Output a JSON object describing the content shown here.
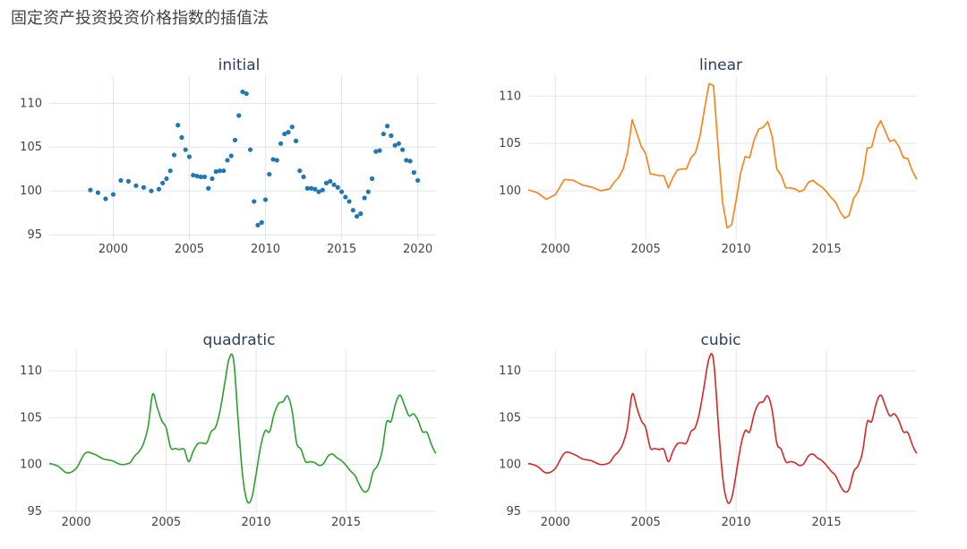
{
  "page": {
    "title": "固定资产投资投资价格指数的插值法"
  },
  "chart_data": [
    {
      "type": "scatter",
      "title": "initial",
      "color": "#1f77b4",
      "xlim": [
        1995.8,
        2021.2
      ],
      "ylim": [
        94.5,
        113.2
      ],
      "xticks": [
        2000,
        2005,
        2010,
        2015,
        2020
      ],
      "yticks": [
        95,
        100,
        105,
        110
      ],
      "x": [
        1998.5,
        1999.0,
        1999.5,
        2000.0,
        2000.5,
        2001.0,
        2001.5,
        2002.0,
        2002.5,
        2003.0,
        2003.25,
        2003.5,
        2003.75,
        2004.0,
        2004.25,
        2004.5,
        2004.75,
        2005.0,
        2005.25,
        2005.5,
        2005.75,
        2006.0,
        2006.25,
        2006.5,
        2006.75,
        2007.0,
        2007.25,
        2007.5,
        2007.75,
        2008.0,
        2008.25,
        2008.5,
        2008.75,
        2009.0,
        2009.25,
        2009.5,
        2009.75,
        2010.0,
        2010.25,
        2010.5,
        2010.75,
        2011.0,
        2011.25,
        2011.5,
        2011.75,
        2012.0,
        2012.25,
        2012.5,
        2012.75,
        2013.0,
        2013.25,
        2013.5,
        2013.75,
        2014.0,
        2014.25,
        2014.5,
        2014.75,
        2015.0,
        2015.25,
        2015.5,
        2015.75,
        2016.0,
        2016.25,
        2016.5,
        2016.75,
        2017.0,
        2017.25,
        2017.5,
        2017.75,
        2018.0,
        2018.25,
        2018.5,
        2018.75,
        2019.0,
        2019.25,
        2019.5,
        2019.75,
        2020.0
      ],
      "y": [
        100.1,
        99.8,
        99.1,
        99.6,
        101.2,
        101.1,
        100.6,
        100.4,
        100.0,
        100.2,
        100.9,
        101.4,
        102.3,
        104.1,
        107.5,
        106.1,
        104.7,
        103.9,
        101.8,
        101.7,
        101.6,
        101.6,
        100.3,
        101.4,
        102.2,
        102.3,
        102.3,
        103.5,
        104.0,
        105.8,
        108.6,
        111.3,
        111.1,
        104.7,
        98.8,
        96.1,
        96.4,
        99.0,
        101.9,
        103.6,
        103.5,
        105.4,
        106.5,
        106.7,
        107.3,
        105.7,
        102.3,
        101.6,
        100.3,
        100.3,
        100.2,
        99.9,
        100.1,
        100.9,
        101.1,
        100.7,
        100.4,
        99.9,
        99.3,
        98.8,
        97.8,
        97.1,
        97.4,
        99.2,
        99.9,
        101.4,
        104.5,
        104.6,
        106.5,
        107.4,
        106.3,
        105.2,
        105.4,
        104.7,
        103.5,
        103.4,
        102.1,
        101.2
      ]
    },
    {
      "type": "line",
      "title": "linear",
      "color": "#ff7f0e",
      "kind": "linear",
      "xlim": [
        1998.5,
        2020.0
      ],
      "ylim": [
        94.9,
        112.2
      ],
      "xticks": [
        2000,
        2005,
        2010,
        2015
      ],
      "yticks": [
        100,
        105,
        110
      ]
    },
    {
      "type": "line",
      "title": "quadratic",
      "color": "#2ca02c",
      "kind": "quadratic",
      "xlim": [
        1998.5,
        2020.0
      ],
      "ylim": [
        94.9,
        112.2
      ],
      "xticks": [
        2000,
        2005,
        2010,
        2015
      ],
      "yticks": [
        95,
        100,
        105,
        110
      ]
    },
    {
      "type": "line",
      "title": "cubic",
      "color": "#d62728",
      "kind": "cubic",
      "xlim": [
        1998.5,
        2020.0
      ],
      "ylim": [
        94.9,
        112.2
      ],
      "xticks": [
        2000,
        2005,
        2010,
        2015
      ],
      "yticks": [
        95,
        100,
        105,
        110
      ]
    }
  ]
}
